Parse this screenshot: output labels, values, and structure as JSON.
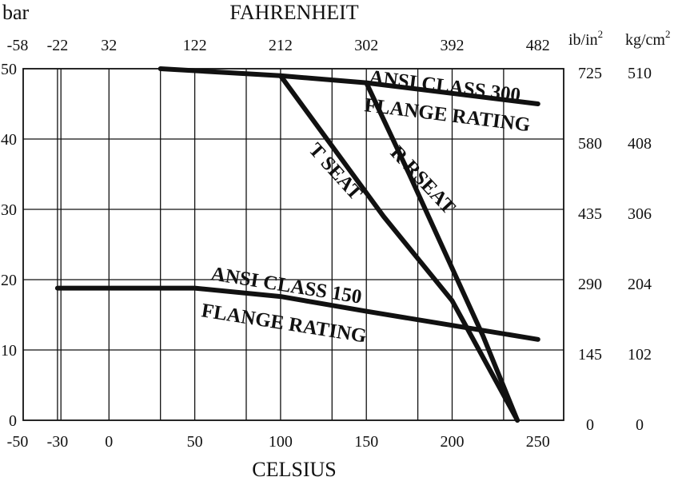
{
  "chart_data": {
    "type": "line",
    "title": "",
    "xlabel": "CELSIUS",
    "x2label": "FAHRENHEIT",
    "ylabel_left": "bar",
    "ylabel_right1": "ib/in",
    "ylabel_right1_sup": "2",
    "ylabel_right2": "kg/cm",
    "ylabel_right2_sup": "2",
    "xlim": [
      -50,
      265
    ],
    "ylim": [
      0,
      50
    ],
    "grid": true,
    "x_ticks": [
      "-50",
      "-30",
      "0",
      "50",
      "100",
      "150",
      "200",
      "250"
    ],
    "x_tick_values": [
      -50,
      -30,
      0,
      50,
      100,
      150,
      200,
      250
    ],
    "x2_ticks": [
      "-58",
      "-22",
      "32",
      "122",
      "212",
      "302",
      "392",
      "482"
    ],
    "x2_tick_values": [
      -50,
      -30,
      0,
      50,
      100,
      150,
      200,
      250
    ],
    "y_ticks": [
      "0",
      "10",
      "20",
      "30",
      "40",
      "50"
    ],
    "y_tick_values": [
      0,
      10,
      20,
      30,
      40,
      50
    ],
    "y_right1_ticks": [
      "0",
      "145",
      "290",
      "435",
      "580",
      "725"
    ],
    "y_right2_ticks": [
      "0",
      "102",
      "204",
      "306",
      "408",
      "510"
    ],
    "grid_x": [
      -30,
      -28,
      0,
      30,
      50,
      80,
      100,
      130,
      150,
      180,
      200,
      230
    ],
    "series": [
      {
        "name": "ANSI CLASS 300 FLANGE RATING",
        "label_lines": [
          "ANSI CLASS 300",
          "FLANGE RATING"
        ],
        "points": [
          [
            30,
            50
          ],
          [
            100,
            49
          ],
          [
            150,
            48
          ],
          [
            250,
            45
          ]
        ]
      },
      {
        "name": "ANSI CLASS 150 FLANGE RATING",
        "label_lines": [
          "ANSI CLASS 150",
          "FLANGE RATING"
        ],
        "points": [
          [
            -30,
            18.8
          ],
          [
            50,
            18.8
          ],
          [
            100,
            17.6
          ],
          [
            150,
            15.5
          ],
          [
            200,
            13.5
          ],
          [
            250,
            11.5
          ]
        ]
      },
      {
        "name": "T SEAT",
        "label_lines": [
          "T SEAT"
        ],
        "points": [
          [
            100,
            49
          ],
          [
            160,
            29
          ],
          [
            200,
            17
          ],
          [
            238,
            0
          ]
        ]
      },
      {
        "name": "R RSEAT",
        "label_lines": [
          "R RSEAT"
        ],
        "points": [
          [
            150,
            48
          ],
          [
            175,
            35
          ],
          [
            218,
            12
          ],
          [
            238,
            0
          ]
        ]
      }
    ]
  }
}
